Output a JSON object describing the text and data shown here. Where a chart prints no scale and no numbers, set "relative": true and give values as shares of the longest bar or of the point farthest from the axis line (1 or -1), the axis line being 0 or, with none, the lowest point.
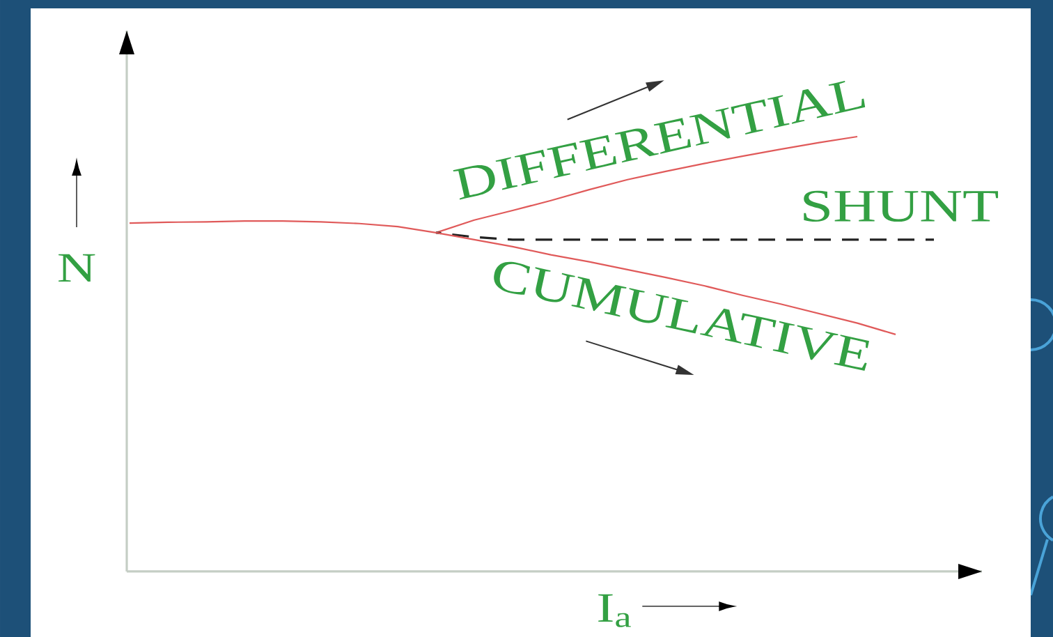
{
  "chart_data": {
    "type": "line",
    "relative": true,
    "xlabel": "I$_{a}$",
    "ylabel": "N",
    "categories": [
      null,
      null,
      null,
      null,
      null,
      null,
      null,
      null,
      null,
      null,
      null,
      null,
      null,
      null,
      null,
      null,
      null,
      null,
      null,
      null,
      null,
      null
    ],
    "series": [
      {
        "name": "DIFFERENTIAL",
        "color": "#e05a5a",
        "values": [
          0.801,
          0.803,
          0.804,
          0.806,
          0.806,
          0.804,
          0.8,
          0.793,
          0.779,
          0.808,
          0.83,
          0.853,
          0.878,
          0.901,
          0.92,
          0.938,
          0.955,
          0.971,
          0.986,
          1,
          null,
          null
        ]
      },
      {
        "name": "SHUNT",
        "color": "#222222",
        "line_style": "dashed",
        "values": [
          null,
          null,
          null,
          null,
          null,
          null,
          null,
          null,
          0.779,
          0.769,
          0.763,
          0.763,
          0.763,
          0.763,
          0.763,
          0.763,
          0.763,
          0.763,
          0.763,
          0.763,
          0.763,
          0.763
        ]
      },
      {
        "name": "CUMULATIVE",
        "color": "#e05a5a",
        "values": [
          null,
          null,
          null,
          null,
          null,
          null,
          null,
          null,
          0.779,
          0.763,
          0.747,
          0.728,
          0.712,
          0.694,
          0.676,
          0.657,
          0.635,
          0.615,
          0.593,
          0.571,
          0.545,
          null
        ]
      }
    ]
  }
}
